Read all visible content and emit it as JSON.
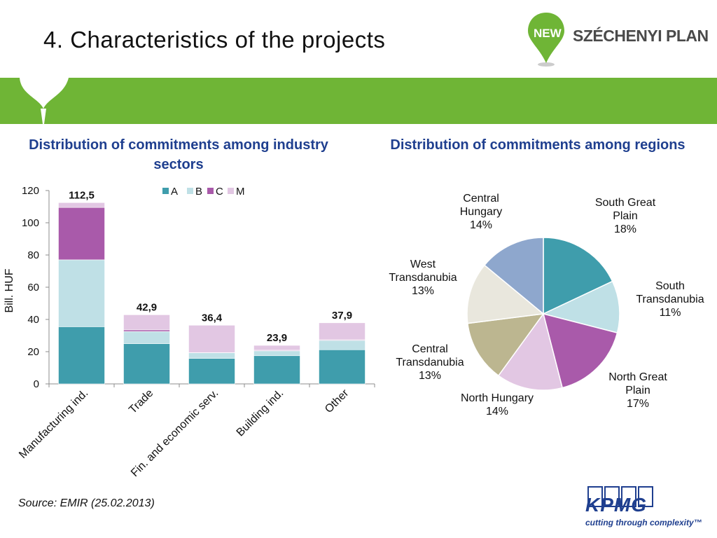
{
  "header": {
    "title": "4. Characteristics of the projects",
    "logo_new": "NEW",
    "logo_text": "SZÉCHENYI PLAN"
  },
  "colors": {
    "green": "#6fb536",
    "title_blue": "#1f3f8f",
    "A": "#3f9dac",
    "B": "#bfe0e6",
    "C": "#a95aaa",
    "M": "#e2c7e3"
  },
  "left_panel": {
    "title": "Distribution of commitments among industry sectors"
  },
  "right_panel": {
    "title": "Distribution of commitments among regions"
  },
  "source": "Source: EMIR (25.02.2013)",
  "footer": {
    "kpmg": "KPMG",
    "tagline": "cutting through complexity™"
  },
  "chart_data": [
    {
      "type": "bar",
      "stacked": true,
      "categories": [
        "Manufacturing ind.",
        "Trade",
        "Fin. and economic serv.",
        "Building ind.",
        "Other"
      ],
      "series": [
        {
          "name": "A",
          "values": [
            35.5,
            25.0,
            15.8,
            17.5,
            21.2
          ],
          "color": "#3f9dac"
        },
        {
          "name": "B",
          "values": [
            41.5,
            7.5,
            3.5,
            3.0,
            5.8
          ],
          "color": "#bfe0e6"
        },
        {
          "name": "C",
          "values": [
            32.5,
            1.0,
            0.1,
            0.4,
            0.4
          ],
          "color": "#a95aaa"
        },
        {
          "name": "M",
          "values": [
            3.0,
            9.4,
            17.0,
            3.0,
            10.5
          ],
          "color": "#e2c7e3"
        }
      ],
      "totals": [
        "112,5",
        "42,9",
        "36,4",
        "23,9",
        "37,9"
      ],
      "ylabel": "Bill. HUF",
      "xlabel": "",
      "ylim": [
        0,
        120
      ],
      "yticks": [
        0,
        20,
        40,
        60,
        80,
        100,
        120
      ],
      "legend_position": "top",
      "grid": false
    },
    {
      "type": "pie",
      "labels": [
        "South Great Plain",
        "South Transdanubia",
        "North Great Plain",
        "North Hungary",
        "Central Transdanubia",
        "West Transdanubia",
        "Central Hungary"
      ],
      "values": [
        18,
        11,
        17,
        14,
        13,
        13,
        14
      ],
      "value_labels": [
        "18%",
        "11%",
        "17%",
        "14%",
        "13%",
        "13%",
        "14%"
      ],
      "colors": [
        "#3f9dac",
        "#bfe0e6",
        "#a95aaa",
        "#e2c7e3",
        "#bcb690",
        "#e9e7dd",
        "#8ea7cd"
      ]
    }
  ]
}
